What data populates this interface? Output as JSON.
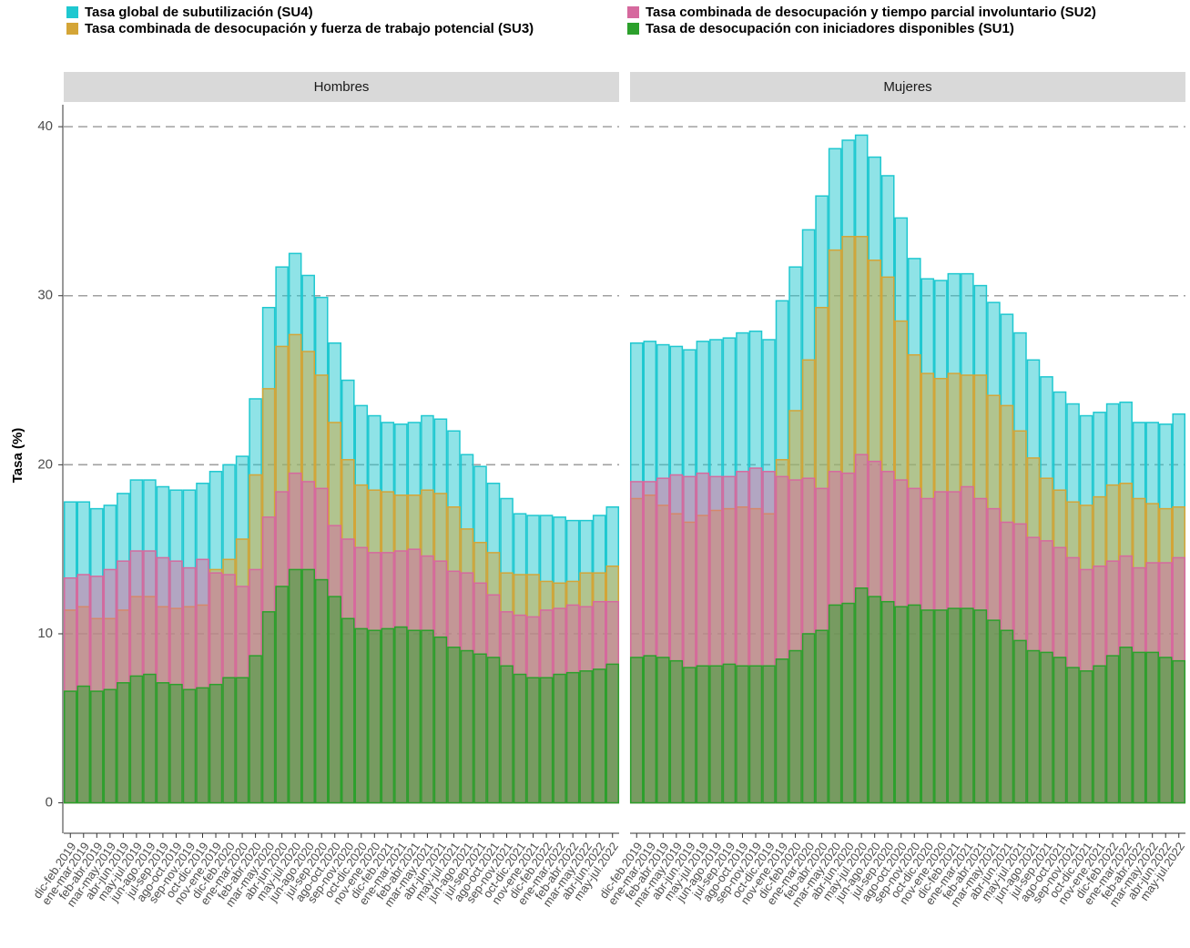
{
  "chart_data": {
    "type": "bar",
    "panels": [
      "Hombres",
      "Mujeres"
    ],
    "y_label": "Tasa (%)",
    "categories": [
      "dic-feb.2019",
      "ene-mar.2019",
      "feb-abr.2019",
      "mar-may.2019",
      "abr-jun.2019",
      "may-jul.2019",
      "jun-ago.2019",
      "jul-sep.2019",
      "ago-oct.2019",
      "sep-nov.2019",
      "oct-dic.2019",
      "nov-ene.2019",
      "dic-feb.2020",
      "ene-mar.2020",
      "feb-abr.2020",
      "mar-may.2020",
      "abr-jun.2020",
      "may-jul.2020",
      "jun-ago.2020",
      "jul-sep.2020",
      "ago-oct.2020",
      "sep-nov.2020",
      "oct-dic.2020",
      "nov-ene.2020",
      "dic-feb.2021",
      "ene-mar.2021",
      "feb-abr.2021",
      "mar-may.2021",
      "abr-jun.2021",
      "may-jul.2021",
      "jun-ago.2021",
      "jul-sep.2021",
      "ago-oct.2021",
      "sep-nov.2021",
      "oct-dic.2021",
      "nov-ene.2021",
      "dic-feb.2022",
      "ene-mar.2022",
      "feb-abr.2022",
      "mar-may.2022",
      "abr-jun.2022",
      "may-jul.2022"
    ],
    "series": [
      {
        "name": "Tasa global de subutilización (SU4)",
        "color": "#1fc8d0",
        "values": [
          [
            17.8,
            17.8,
            17.4,
            17.6,
            18.3,
            19.1,
            19.1,
            18.7,
            18.5,
            18.5,
            18.9,
            19.6,
            20.0,
            20.5,
            23.9,
            29.3,
            31.7,
            32.5,
            31.2,
            29.9,
            27.2,
            25.0,
            23.5,
            22.9,
            22.5,
            22.4,
            22.5,
            22.9,
            22.7,
            22.0,
            20.6,
            19.9,
            18.9,
            18.0,
            17.1,
            17.0,
            17.0,
            16.9,
            16.7,
            16.7,
            17.0,
            17.5
          ],
          [
            27.2,
            27.3,
            27.1,
            27.0,
            26.8,
            27.3,
            27.4,
            27.5,
            27.8,
            27.9,
            27.4,
            29.7,
            31.7,
            33.9,
            35.9,
            38.7,
            39.2,
            39.5,
            38.2,
            37.1,
            34.6,
            32.2,
            31.0,
            30.9,
            31.3,
            31.3,
            30.6,
            29.6,
            28.9,
            27.8,
            26.2,
            25.2,
            24.3,
            23.6,
            22.9,
            23.1,
            23.6,
            23.7,
            22.5,
            22.5,
            22.4,
            23.0
          ]
        ]
      },
      {
        "name": "Tasa combinada de desocupación y fuerza de trabajo potencial (SU3)",
        "color": "#d4a537",
        "values": [
          [
            11.4,
            11.6,
            10.9,
            10.9,
            11.4,
            12.2,
            12.2,
            11.6,
            11.5,
            11.6,
            11.7,
            13.8,
            14.4,
            15.6,
            19.4,
            24.5,
            27.0,
            27.7,
            26.7,
            25.3,
            22.5,
            20.3,
            18.8,
            18.5,
            18.4,
            18.2,
            18.2,
            18.5,
            18.3,
            17.5,
            16.2,
            15.4,
            14.8,
            13.6,
            13.5,
            13.5,
            13.1,
            13.0,
            13.1,
            13.6,
            13.6,
            14.0
          ],
          [
            18.0,
            18.2,
            17.6,
            17.1,
            16.6,
            17.0,
            17.3,
            17.4,
            17.5,
            17.4,
            17.1,
            20.3,
            23.2,
            26.2,
            29.3,
            32.7,
            33.5,
            33.5,
            32.1,
            31.1,
            28.5,
            26.5,
            25.4,
            25.1,
            25.4,
            25.3,
            25.3,
            24.1,
            23.5,
            22.0,
            20.4,
            19.2,
            18.5,
            17.8,
            17.6,
            18.1,
            18.8,
            18.9,
            18.0,
            17.7,
            17.4,
            17.5
          ]
        ]
      },
      {
        "name": "Tasa combinada de desocupación y tiempo parcial involuntario (SU2)",
        "color": "#d6699e",
        "values": [
          [
            13.3,
            13.5,
            13.4,
            13.8,
            14.3,
            14.9,
            14.9,
            14.5,
            14.3,
            13.9,
            14.4,
            13.6,
            13.5,
            12.8,
            13.8,
            16.9,
            18.4,
            19.5,
            19.0,
            18.6,
            16.4,
            15.6,
            15.1,
            14.8,
            14.8,
            14.9,
            15.0,
            14.6,
            14.3,
            13.7,
            13.6,
            13.0,
            12.3,
            11.3,
            11.1,
            11.0,
            11.4,
            11.5,
            11.7,
            11.6,
            11.9,
            11.9
          ],
          [
            19.0,
            19.0,
            19.2,
            19.4,
            19.3,
            19.5,
            19.3,
            19.3,
            19.6,
            19.8,
            19.6,
            19.3,
            19.1,
            19.2,
            18.6,
            19.6,
            19.5,
            20.6,
            20.2,
            19.6,
            19.1,
            18.6,
            18.0,
            18.4,
            18.4,
            18.7,
            18.0,
            17.4,
            16.6,
            16.5,
            15.7,
            15.5,
            15.1,
            14.5,
            13.8,
            14.0,
            14.3,
            14.6,
            13.9,
            14.2,
            14.2,
            14.5
          ]
        ]
      },
      {
        "name": "Tasa de desocupación con iniciadores disponibles (SU1)",
        "color": "#2ca02c",
        "values": [
          [
            6.6,
            6.9,
            6.6,
            6.7,
            7.1,
            7.5,
            7.6,
            7.1,
            7.0,
            6.7,
            6.8,
            7.0,
            7.4,
            7.4,
            8.7,
            11.3,
            12.8,
            13.8,
            13.8,
            13.2,
            12.2,
            10.9,
            10.3,
            10.2,
            10.3,
            10.4,
            10.2,
            10.2,
            9.8,
            9.2,
            9.0,
            8.8,
            8.6,
            8.1,
            7.6,
            7.4,
            7.4,
            7.6,
            7.7,
            7.8,
            7.9,
            8.2
          ],
          [
            8.6,
            8.7,
            8.6,
            8.4,
            8.0,
            8.1,
            8.1,
            8.2,
            8.1,
            8.1,
            8.1,
            8.5,
            9.0,
            10.0,
            10.2,
            11.7,
            11.8,
            12.7,
            12.2,
            11.9,
            11.6,
            11.7,
            11.4,
            11.4,
            11.5,
            11.5,
            11.4,
            10.8,
            10.2,
            9.6,
            9.0,
            8.9,
            8.6,
            8.0,
            7.8,
            8.1,
            8.7,
            9.2,
            8.9,
            8.9,
            8.6,
            8.4
          ]
        ]
      }
    ],
    "ylim": [
      -1.8,
      41.3
    ],
    "yticks": [
      0,
      10,
      20,
      30,
      40
    ],
    "grid": true
  }
}
